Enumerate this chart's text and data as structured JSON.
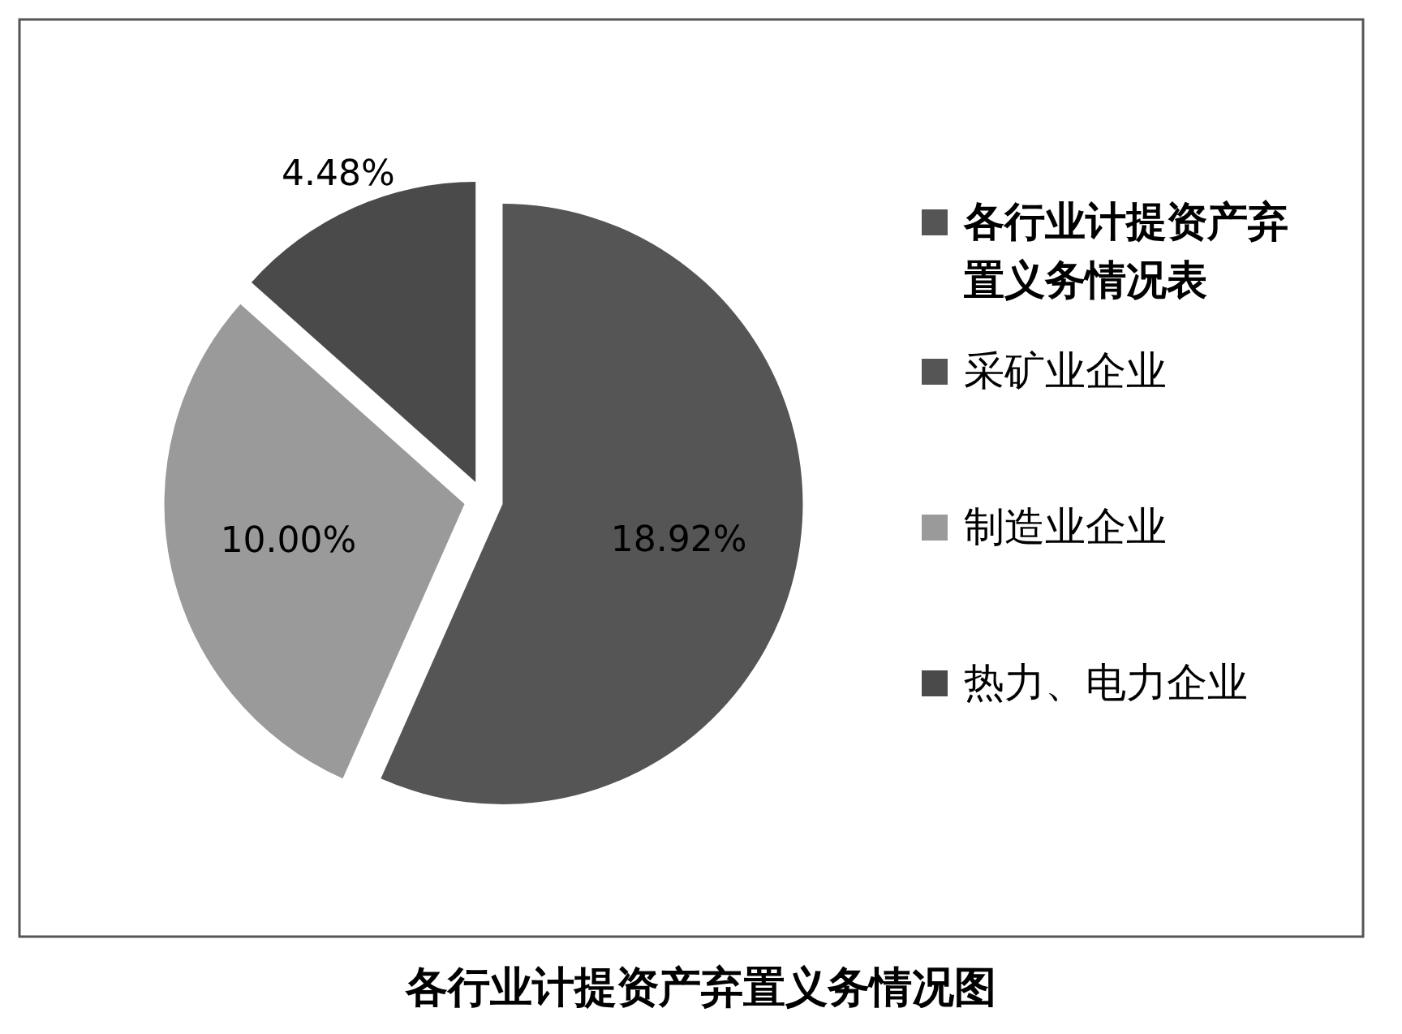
{
  "chart_data": {
    "type": "pie",
    "title": "各行业计提资产弃置义务情况图",
    "legend_title": "各行业计提资产弃置义务情况表",
    "categories": [
      "采矿业企业",
      "制造业企业",
      "热力、电力企业"
    ],
    "values": [
      18.92,
      10.0,
      4.48
    ],
    "value_labels": [
      "18.92%",
      "10.00%",
      "4.48%"
    ],
    "colors": [
      "#555555",
      "#9a9a9a",
      "#4a4a4a"
    ],
    "legend": "right"
  }
}
